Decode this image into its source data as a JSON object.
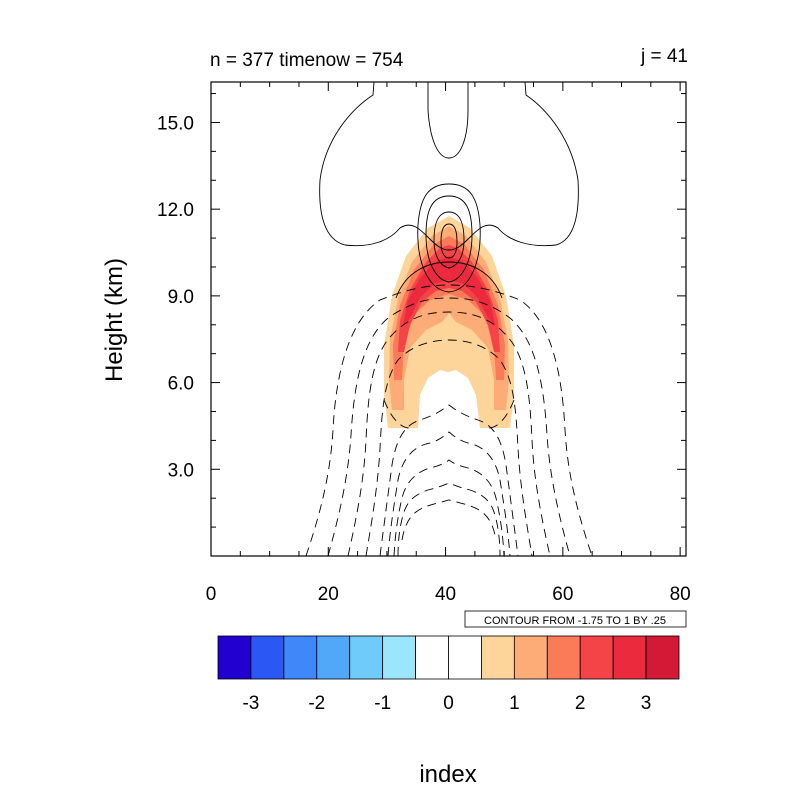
{
  "chart_data": {
    "type": "contour",
    "title_left": "n = 377 timenow = 754",
    "title_right": "j = 41",
    "xlabel": "index",
    "ylabel": "Height (km)",
    "xlim": [
      0,
      81
    ],
    "ylim": [
      0,
      16.4
    ],
    "x_ticks": [
      "0",
      "20",
      "40",
      "60",
      "80"
    ],
    "y_ticks": [
      "3.0",
      "6.0",
      "9.0",
      "12.0",
      "15.0"
    ],
    "contour_info": "CONTOUR FROM -1.75 TO 1 BY .25",
    "colorbar": {
      "labels": [
        "-3",
        "-2",
        "-1",
        "0",
        "1",
        "2",
        "3"
      ],
      "colors": [
        "#2200d0",
        "#2b57f5",
        "#3e88fa",
        "#52a8f8",
        "#6ecbfa",
        "#9ce6fb",
        "#ffffff",
        "#ffffff",
        "#fdd49a",
        "#fdab77",
        "#fb7b59",
        "#f54447",
        "#ec2a3d",
        "#d41936"
      ]
    },
    "shaded_field": {
      "description_levels": [
        "0.5-1",
        "1-1.5",
        "1.5-2",
        "2-2.5",
        "2.5-3"
      ],
      "center_x": 41,
      "peak_height_km": 10.4
    }
  }
}
